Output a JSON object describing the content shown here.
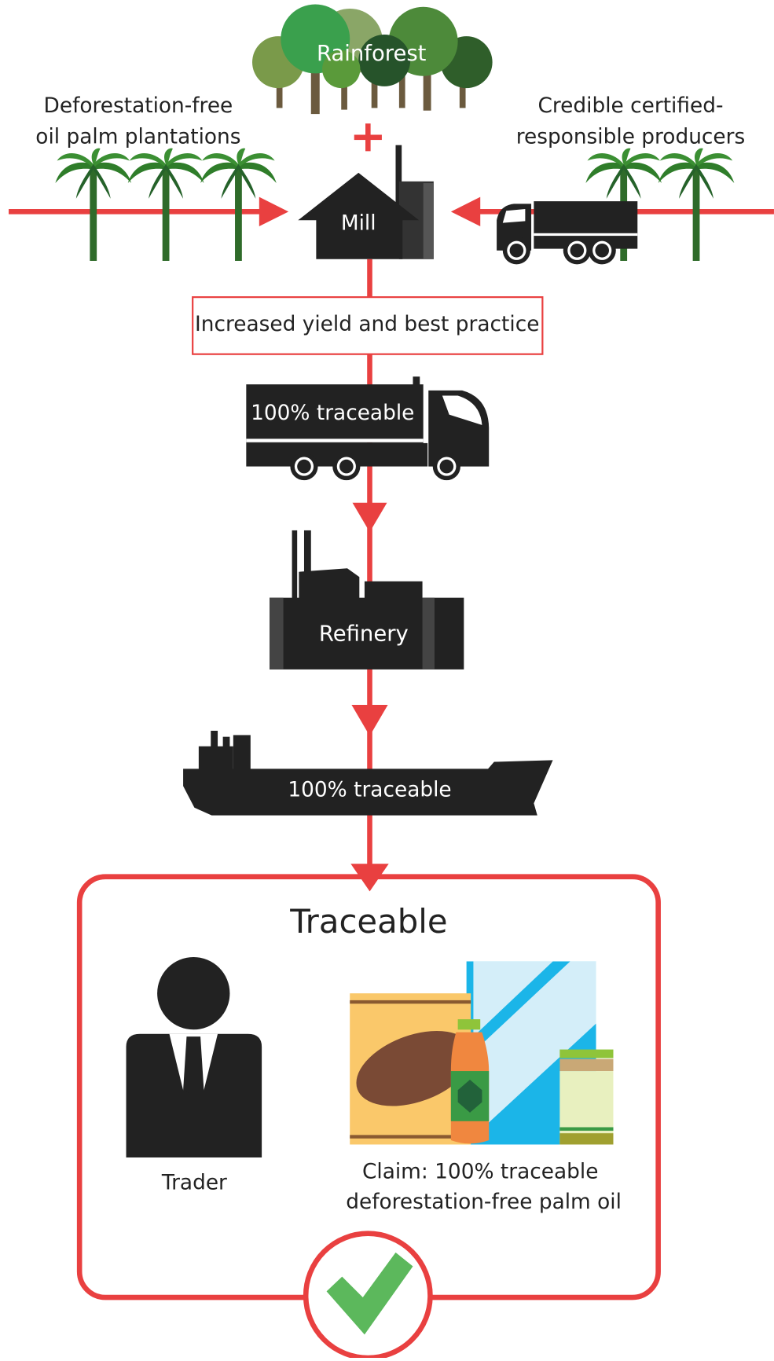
{
  "rainforest": {
    "label": "Rainforest"
  },
  "plantations": {
    "lines": [
      "Deforestation-free",
      "oil palm plantations"
    ]
  },
  "producers": {
    "lines": [
      "Credible certified-",
      "responsible producers"
    ]
  },
  "mill": {
    "label": "Mill"
  },
  "practice_box": {
    "label": "Increased yield and best practice"
  },
  "truck": {
    "label": "100% traceable"
  },
  "refinery": {
    "label": "Refinery"
  },
  "ship": {
    "label": "100% traceable"
  },
  "outcome": {
    "title": "Traceable",
    "trader": {
      "label": "Trader"
    },
    "claim": {
      "lines": [
        "Claim: 100% traceable",
        "deforestation-free palm oil"
      ]
    }
  }
}
